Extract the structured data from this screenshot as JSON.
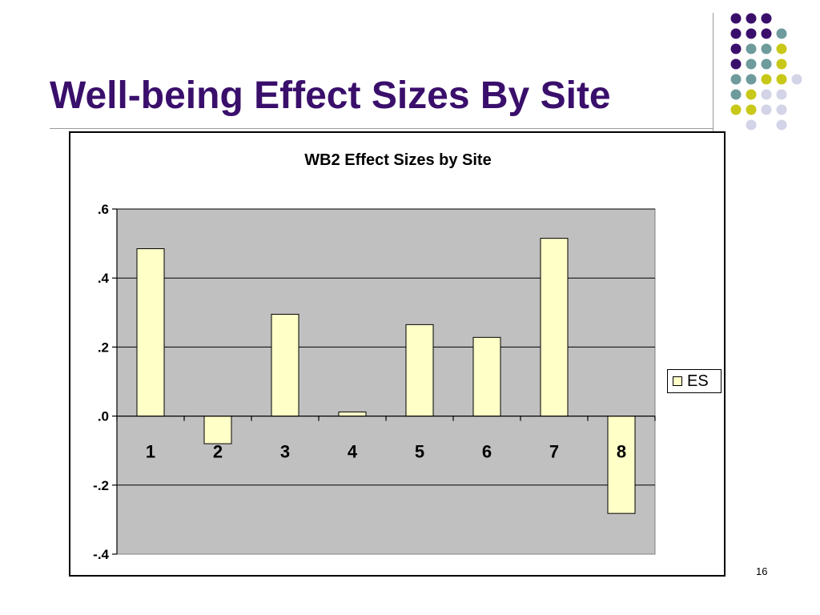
{
  "slide": {
    "title": "Well-being Effect Sizes By Site",
    "page_number": "16"
  },
  "decoration": {
    "dot_colors": [
      "#3a0f6b",
      "#6e9b9c",
      "#c8c818",
      "#d4d4e8"
    ]
  },
  "chart_data": {
    "type": "bar",
    "title": "WB2 Effect Sizes by Site",
    "xlabel": "",
    "ylabel": "",
    "categories": [
      "1",
      "2",
      "3",
      "4",
      "5",
      "6",
      "7",
      "8"
    ],
    "series": [
      {
        "name": "ES",
        "values": [
          0.485,
          -0.08,
          0.295,
          0.012,
          0.265,
          0.228,
          0.515,
          -0.282
        ]
      }
    ],
    "ylim": [
      -0.4,
      0.6
    ],
    "yticks": [
      0.6,
      0.4,
      0.2,
      0.0,
      -0.2,
      -0.4
    ],
    "ytick_labels": [
      ".6",
      ".4",
      ".2",
      ".0",
      "-.2",
      "-.4"
    ],
    "grid": true,
    "legend_position": "right",
    "colors": {
      "bar_fill": "#ffffc8",
      "plot_background": "#c0c0c0",
      "bar_stroke": "#000000"
    }
  }
}
